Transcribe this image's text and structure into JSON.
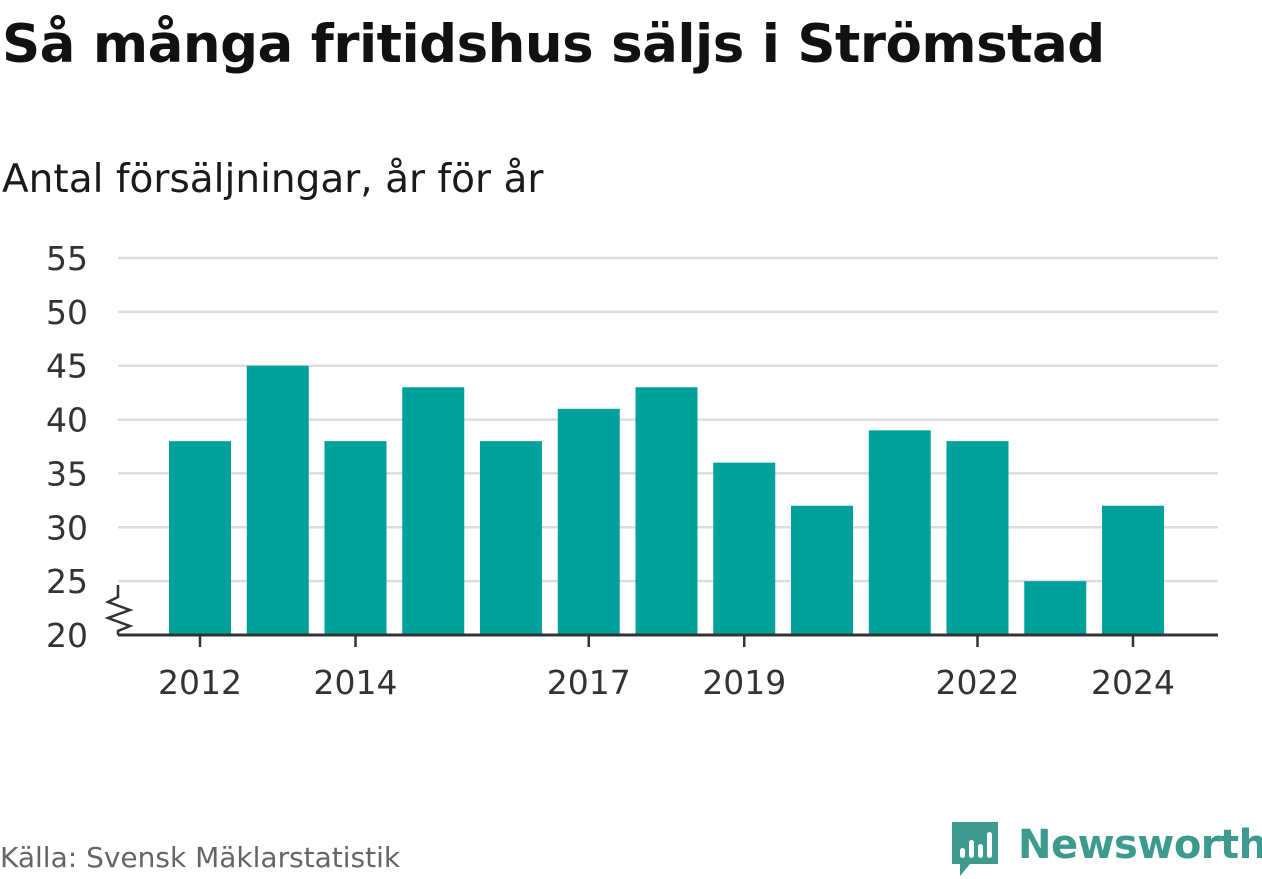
{
  "header": {
    "title": "Så många fritidshus säljs i Strömstad",
    "subtitle": "Antal försäljningar, år för år"
  },
  "footer": {
    "source": "Källa: Svensk Mäklarstatistik",
    "brand": "Newsworthy"
  },
  "colors": {
    "bar": "#00a19a",
    "grid": "#dddddd",
    "axis": "#333333",
    "brand": "#3d9a8e"
  },
  "chart_data": {
    "type": "bar",
    "categories": [
      "2012",
      "2013",
      "2014",
      "2015",
      "2016",
      "2017",
      "2018",
      "2019",
      "2020",
      "2021",
      "2022",
      "2023",
      "2024"
    ],
    "values": [
      38,
      45,
      38,
      43,
      38,
      41,
      43,
      36,
      32,
      39,
      38,
      25,
      32
    ],
    "x_tick_labels": [
      "2012",
      "2014",
      "2017",
      "2019",
      "2022",
      "2024"
    ],
    "y_ticks": [
      20,
      25,
      30,
      35,
      40,
      45,
      50,
      55
    ],
    "ylim": [
      20,
      55
    ],
    "y_axis_break": true,
    "grid": true,
    "legend": "none",
    "title": "Så många fritidshus säljs i Strömstad",
    "subtitle": "Antal försäljningar, år för år"
  }
}
